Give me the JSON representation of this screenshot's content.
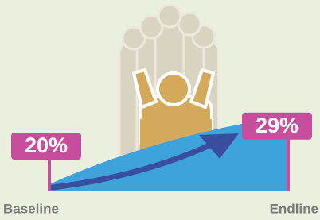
{
  "chart_data": {
    "type": "area",
    "categories": [
      "Baseline",
      "Endline"
    ],
    "values": [
      20,
      29
    ],
    "value_labels": [
      "20%",
      "29%"
    ],
    "color": "#3ea3dd",
    "label_color": "#c64e9d"
  }
}
